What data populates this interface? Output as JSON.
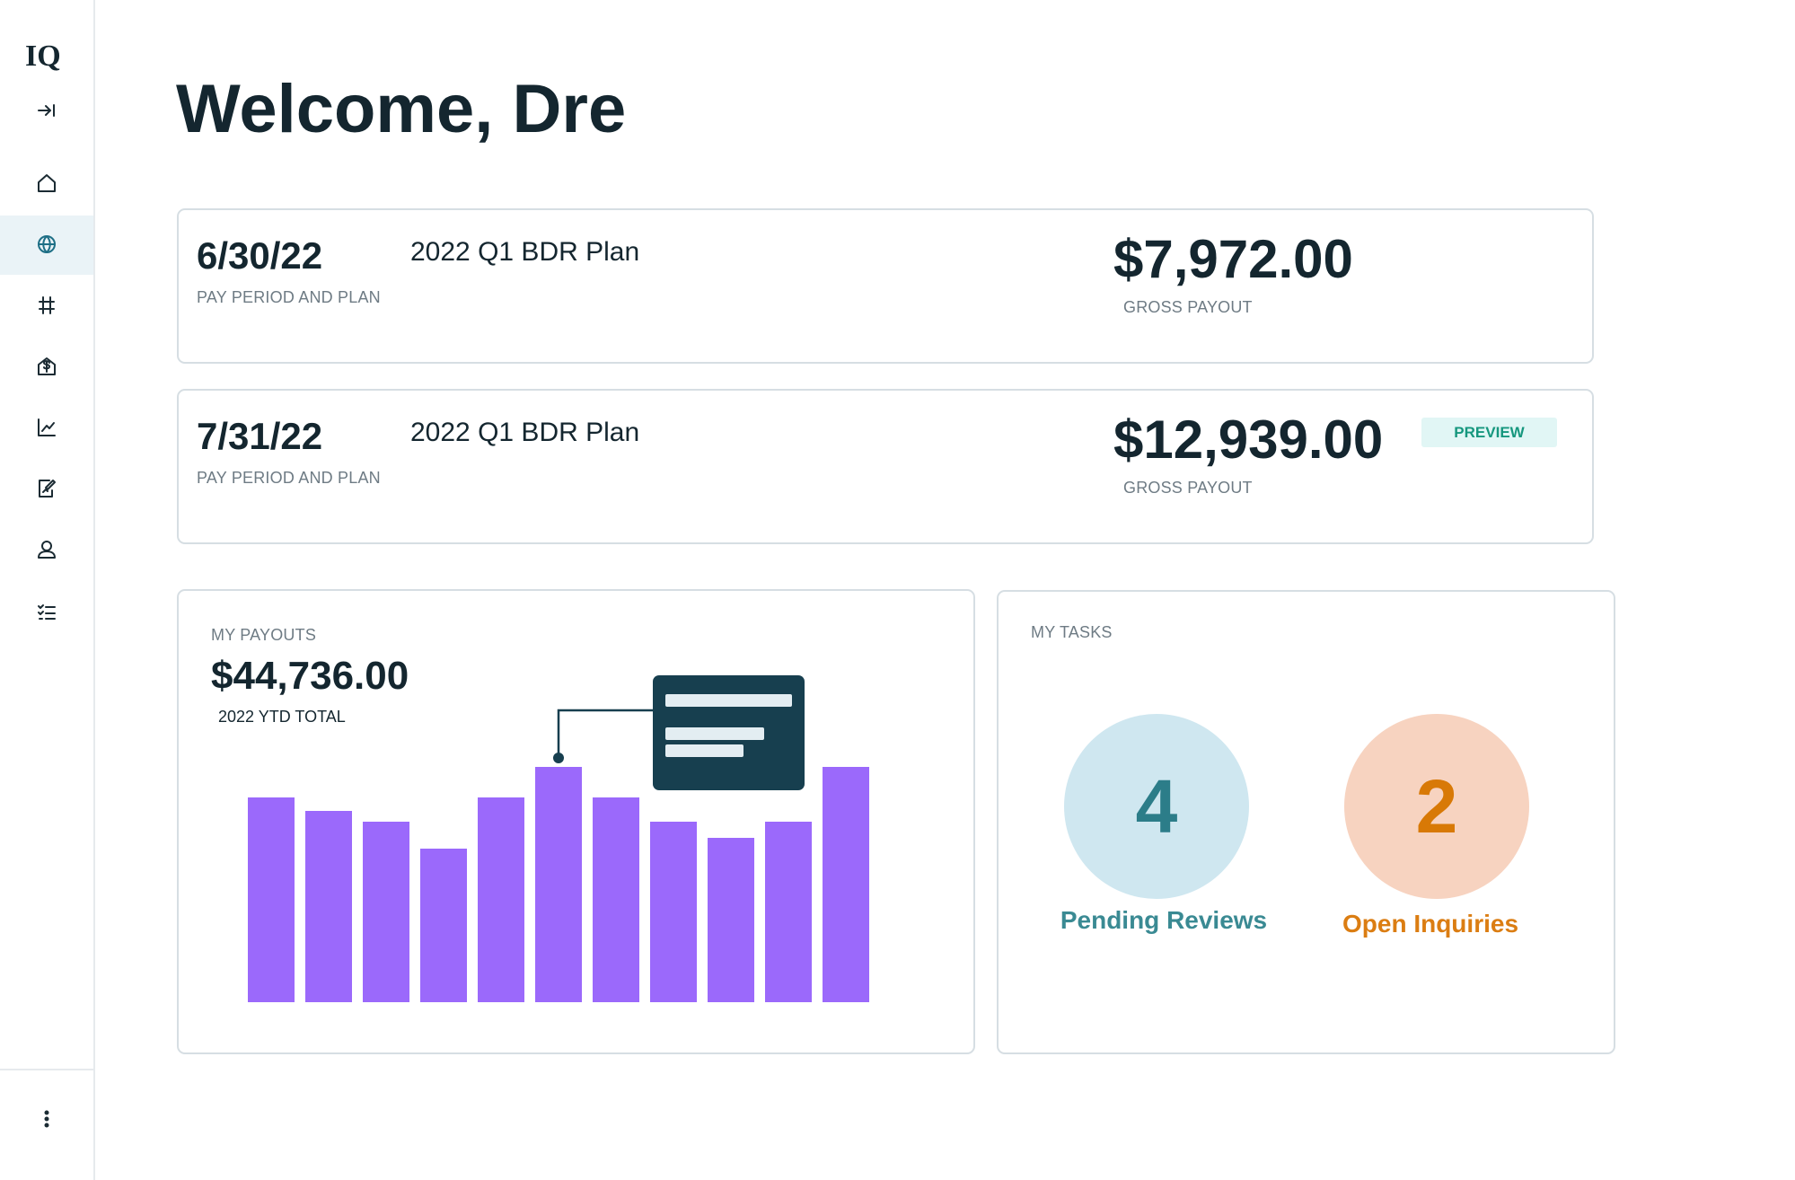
{
  "sidebar": {
    "logo": "IQ"
  },
  "header": {
    "title": "Welcome, Dre"
  },
  "pay_periods": [
    {
      "date": "6/30/22",
      "date_label": "PAY PERIOD AND PLAN",
      "plan": "2022 Q1 BDR Plan",
      "amount": "$7,972.00",
      "amount_label": "GROSS PAYOUT"
    },
    {
      "date": "7/31/22",
      "date_label": "PAY PERIOD AND PLAN",
      "plan": "2022 Q1 BDR Plan",
      "amount": "$12,939.00",
      "amount_label": "GROSS PAYOUT",
      "badge": "PREVIEW"
    }
  ],
  "payouts": {
    "title": "MY PAYOUTS",
    "total": "$44,736.00",
    "total_label": "2022 YTD TOTAL"
  },
  "tasks": {
    "title": "MY TASKS",
    "items": [
      {
        "count": "4",
        "label": "Pending Reviews"
      },
      {
        "count": "2",
        "label": "Open Inquiries"
      }
    ]
  }
}
